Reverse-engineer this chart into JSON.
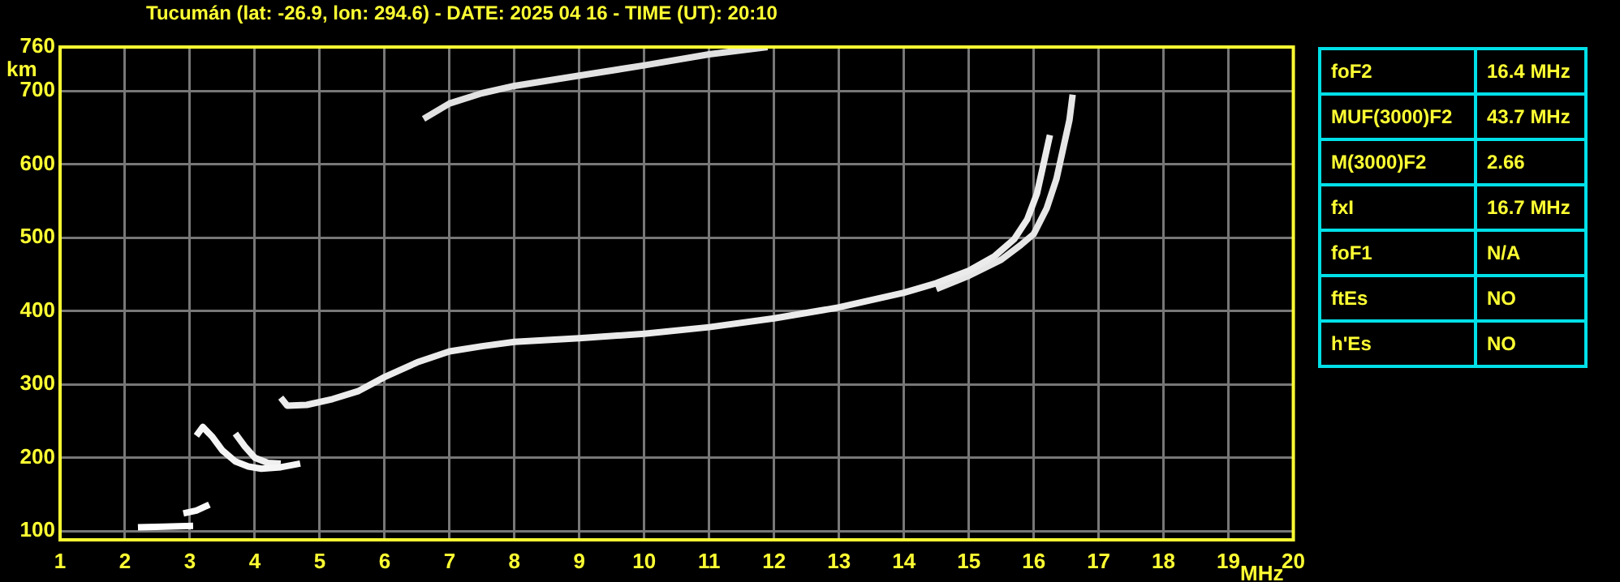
{
  "chart_data": [
    {
      "type": "line",
      "title": "Tucumán (lat: -26.9, lon: 294.6) - DATE: 2025 04 16 - TIME (UT): 20:10",
      "xlabel": "MHz",
      "ylabel": "km",
      "xlim": [
        1,
        20
      ],
      "xticks": [
        1,
        2,
        3,
        4,
        5,
        6,
        7,
        8,
        9,
        10,
        11,
        12,
        13,
        14,
        15,
        16,
        17,
        18,
        19,
        20
      ],
      "ylim": [
        88,
        760
      ],
      "yticks": [
        100,
        200,
        300,
        400,
        500,
        600,
        700,
        760
      ],
      "grid": true,
      "series": [
        {
          "color": "#ffffff",
          "x": [
            2.2,
            2.6,
            3.05
          ],
          "values": [
            105,
            106,
            107
          ]
        },
        {
          "color": "#fafafa",
          "x": [
            2.9,
            3.1,
            3.3
          ],
          "values": [
            124,
            128,
            136
          ]
        },
        {
          "color": "#f5f5f5",
          "x": [
            3.1,
            3.2,
            3.35,
            3.5,
            3.7,
            3.9,
            4.1,
            4.4,
            4.7
          ],
          "values": [
            230,
            242,
            228,
            210,
            195,
            188,
            185,
            187,
            192
          ]
        },
        {
          "color": "#f0f0f0",
          "x": [
            3.7,
            3.85,
            4.0,
            4.2,
            4.4
          ],
          "values": [
            233,
            215,
            200,
            193,
            192
          ]
        },
        {
          "color": "#ebebeb",
          "x": [
            4.4,
            4.5,
            4.8,
            5.2,
            5.6,
            6.0,
            6.5,
            7.0,
            7.5,
            8.0,
            9.0,
            10.0,
            11.0,
            12.0,
            13.0,
            14.0,
            14.5,
            15.0,
            15.4,
            15.7,
            15.9,
            16.05,
            16.15,
            16.25
          ],
          "values": [
            282,
            271,
            272,
            280,
            291,
            310,
            330,
            345,
            352,
            358,
            363,
            369,
            378,
            390,
            405,
            425,
            438,
            455,
            475,
            498,
            525,
            560,
            600,
            640
          ]
        },
        {
          "color": "#e6e6e6",
          "x": [
            14.5,
            15.0,
            15.5,
            15.8,
            16.0,
            16.2,
            16.35,
            16.45,
            16.55,
            16.6
          ],
          "values": [
            430,
            448,
            470,
            490,
            505,
            540,
            580,
            620,
            660,
            695
          ]
        },
        {
          "color": "#e1e1e1",
          "x": [
            6.6,
            7.0,
            7.5,
            8.0,
            9.0,
            10.0,
            11.0,
            11.9
          ],
          "values": [
            662,
            683,
            697,
            707,
            721,
            735,
            750,
            760
          ]
        }
      ]
    },
    {
      "type": "other",
      "annotations": [
        "foF2",
        "16.4 MHz",
        "MUF(3000)F2",
        "43.7 MHz",
        "M(3000)F2",
        "2.66",
        "fxI",
        "16.7 MHz",
        "foF1",
        "N/A",
        "ftEs",
        "NO",
        "h'Es",
        "NO"
      ]
    }
  ]
}
